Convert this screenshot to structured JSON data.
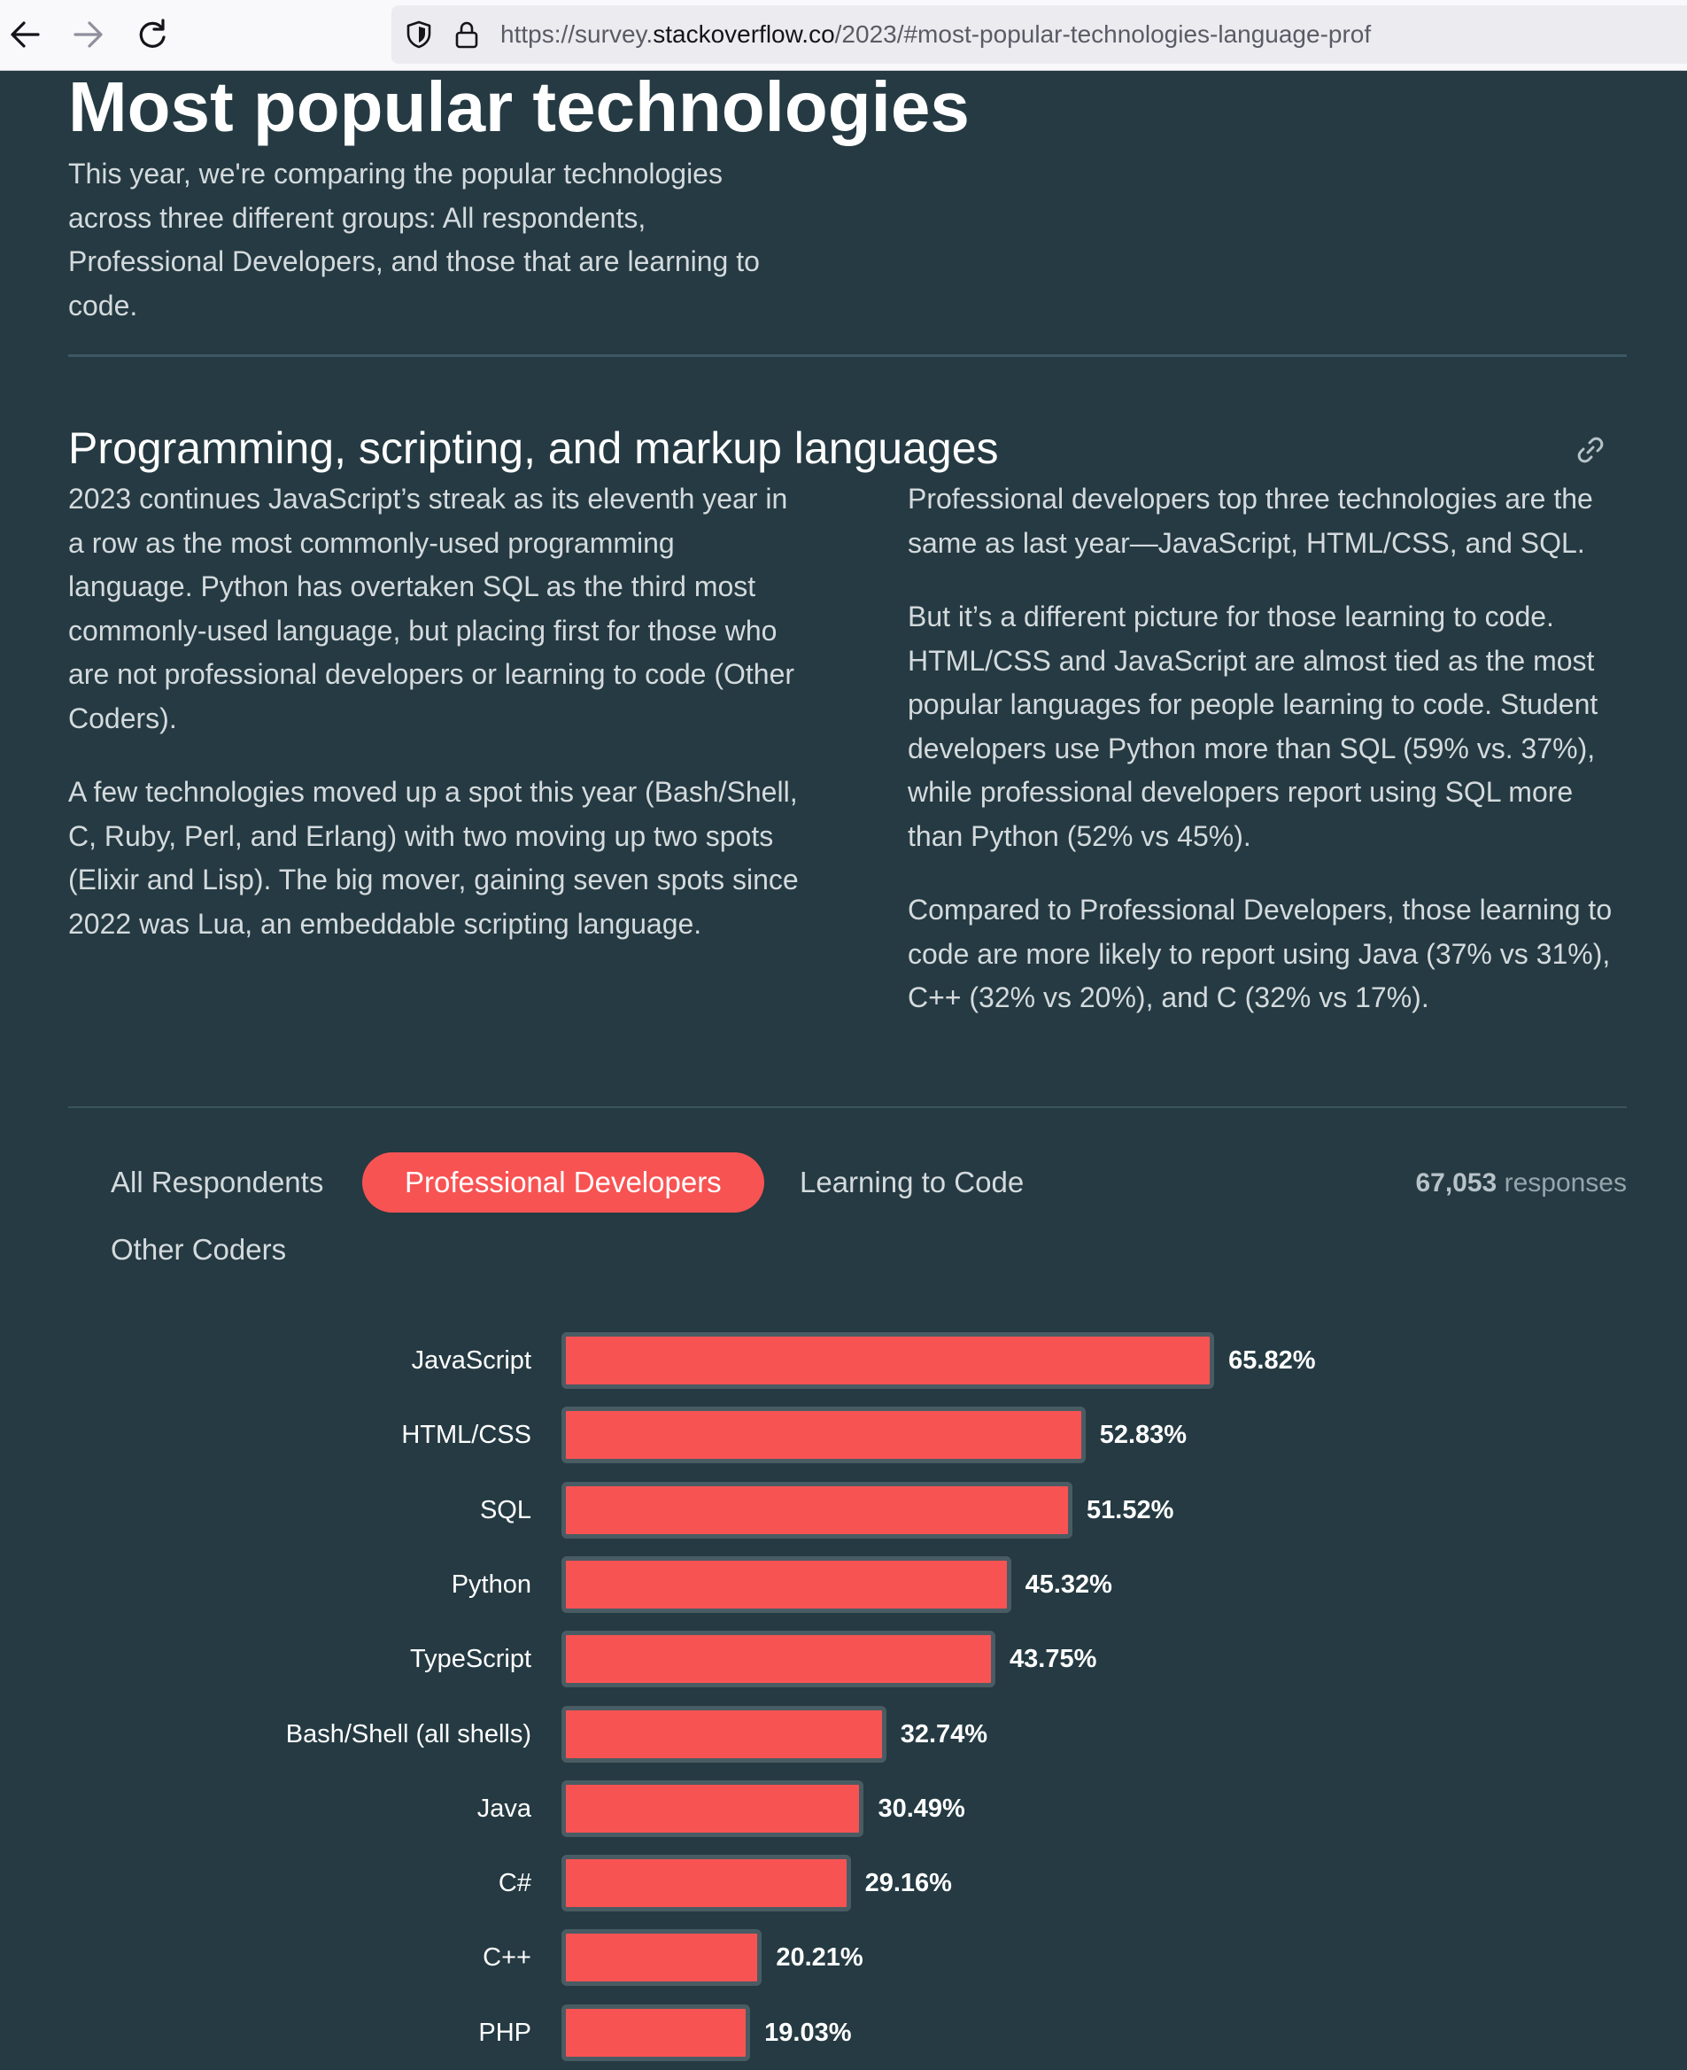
{
  "browser": {
    "url_prefix": "https://survey.",
    "url_host": "stackoverflow.co",
    "url_suffix": "/2023/#most-popular-technologies-language-prof"
  },
  "page": {
    "title": "Most popular technologies",
    "intro": "This year, we're comparing the popular technologies across three different groups: All respondents, Professional Developers, and those that are learning to code."
  },
  "section": {
    "title": "Programming, scripting, and markup languages",
    "left_paragraphs": [
      "2023 continues JavaScript’s streak as its eleventh year in a row as the most commonly-used programming language. Python has overtaken SQL as the third most commonly-used language, but placing first for those who are not professional developers or learning to code (Other Coders).",
      "A few technologies moved up a spot this year (Bash/Shell, C, Ruby, Perl, and Erlang) with two moving up two spots (Elixir and Lisp). The big mover, gaining seven spots since 2022 was Lua, an embeddable scripting language."
    ],
    "right_paragraphs": [
      "Professional developers top three technologies are the same as last year—JavaScript, HTML/CSS, and SQL.",
      "But it’s a different picture for those learning to code. HTML/CSS and JavaScript are almost tied as the most popular languages for people learning to code. Student developers use Python more than SQL (59% vs. 37%), while professional developers report using SQL more than Python (52% vs 45%).",
      "Compared to Professional Developers, those learning to code are more likely to report using Java (37% vs 31%), C++ (32% vs 20%), and C (32% vs 17%)."
    ]
  },
  "tabs": {
    "all": "All Respondents",
    "pro": "Professional Developers",
    "learning": "Learning to Code",
    "other": "Other Coders",
    "active": "Professional Developers"
  },
  "responses": {
    "count": "67,053",
    "label": "responses"
  },
  "colors": {
    "background": "#253a42",
    "accent": "#f85353",
    "bar_border": "#4a5c63"
  },
  "chart_data": {
    "type": "bar",
    "orientation": "horizontal",
    "categories": [
      "JavaScript",
      "HTML/CSS",
      "SQL",
      "Python",
      "TypeScript",
      "Bash/Shell (all shells)",
      "Java",
      "C#",
      "C++",
      "PHP"
    ],
    "values": [
      65.82,
      52.83,
      51.52,
      45.32,
      43.75,
      32.74,
      30.49,
      29.16,
      20.21,
      19.03
    ],
    "value_labels": [
      "65.82%",
      "52.83%",
      "51.52%",
      "45.32%",
      "43.75%",
      "32.74%",
      "30.49%",
      "29.16%",
      "20.21%",
      "19.03%"
    ],
    "unit": "%",
    "grid": false
  }
}
